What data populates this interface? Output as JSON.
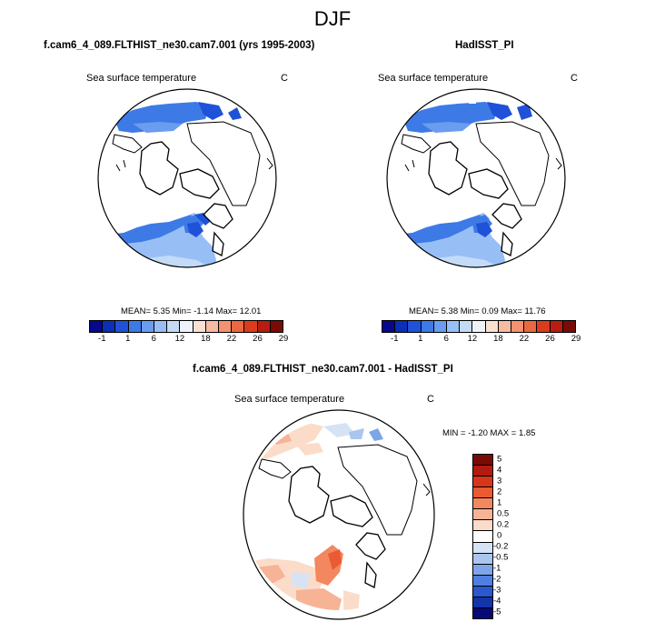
{
  "title": "DJF",
  "panel1": {
    "title": "f.cam6_4_089.FLTHIST_ne30.cam7.001 (yrs 1995-2003)",
    "field": "Sea surface temperature",
    "units": "C",
    "stats": "MEAN=   5.35  Min=  -1.14  Max=  12.01"
  },
  "panel2": {
    "title": "HadISST_PI",
    "field": "Sea surface temperature",
    "units": "C",
    "stats": "MEAN=   5.38  Min=   0.09  Max=  11.76"
  },
  "panel3": {
    "title": "f.cam6_4_089.FLTHIST_ne30.cam7.001 - HadISST_PI",
    "field": "Sea surface temperature",
    "units": "C",
    "stats": "MIN =  -1.20 MAX =   1.85"
  },
  "colorbar_abs": {
    "colors": [
      "#08088c",
      "#0b2fb5",
      "#1f52d8",
      "#3d7ae6",
      "#6a9cef",
      "#98bff5",
      "#c4dbf7",
      "#eef3fa",
      "#fbe0d2",
      "#f7bba1",
      "#f3926f",
      "#ec6840",
      "#dc3c1e",
      "#b81d0f",
      "#7a0a05"
    ],
    "labels": [
      "-1",
      "1",
      "6",
      "12",
      "18",
      "22",
      "26",
      "29"
    ]
  },
  "colorbar_diff": {
    "colors": [
      "#7a0a05",
      "#b31b0e",
      "#d8361b",
      "#ea5b34",
      "#f3875f",
      "#f7b396",
      "#fbdcc9",
      "#ffffff",
      "#d6e3f5",
      "#aac6ef",
      "#7ea5e8",
      "#4f7fe0",
      "#2a58cf",
      "#1235a8",
      "#050a78"
    ],
    "labels": [
      "5",
      "4",
      "3",
      "2",
      "1",
      "0.5",
      "0.2",
      "0",
      "-0.2",
      "-0.5",
      "-1",
      "-2",
      "-3",
      "-4",
      "-5"
    ]
  }
}
